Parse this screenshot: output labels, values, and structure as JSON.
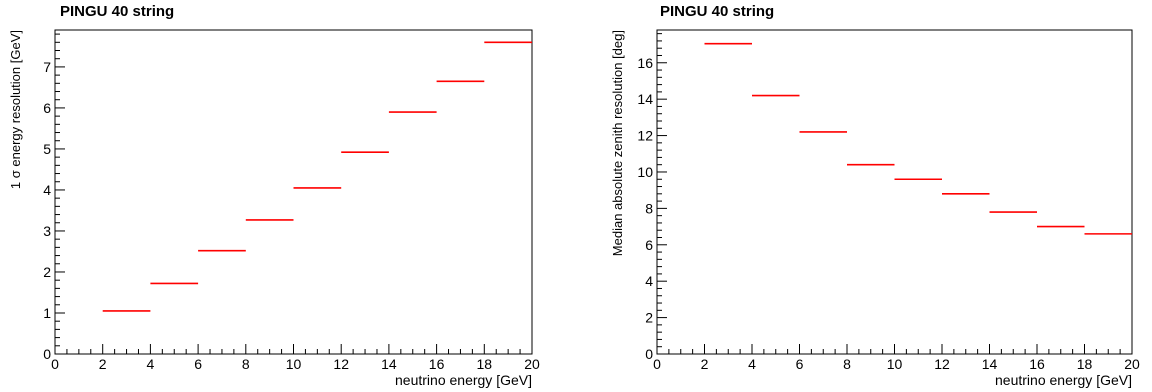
{
  "chart_data": [
    {
      "type": "step",
      "title": "PINGU 40 string",
      "xlabel": "neutrino energy [GeV]",
      "ylabel": "1 σ energy resolution [GeV]",
      "xlim": [
        0,
        20
      ],
      "ylim": [
        0,
        7.9
      ],
      "xticks": [
        "0",
        "2",
        "4",
        "6",
        "8",
        "10",
        "12",
        "14",
        "16",
        "18",
        "20"
      ],
      "yticks": [
        "0",
        "1",
        "2",
        "3",
        "4",
        "5",
        "6",
        "7"
      ],
      "color": "#ff0000",
      "grid": false,
      "bins": [
        {
          "x0": 2,
          "x1": 4,
          "y": 1.05
        },
        {
          "x0": 4,
          "x1": 6,
          "y": 1.72
        },
        {
          "x0": 6,
          "x1": 8,
          "y": 2.52
        },
        {
          "x0": 8,
          "x1": 10,
          "y": 3.27
        },
        {
          "x0": 10,
          "x1": 12,
          "y": 4.05
        },
        {
          "x0": 12,
          "x1": 14,
          "y": 4.92
        },
        {
          "x0": 14,
          "x1": 16,
          "y": 5.9
        },
        {
          "x0": 16,
          "x1": 18,
          "y": 6.65
        },
        {
          "x0": 18,
          "x1": 20,
          "y": 7.6
        }
      ]
    },
    {
      "type": "step",
      "title": "PINGU 40 string",
      "xlabel": "neutrino energy [GeV]",
      "ylabel": "Median absolute zenith resolution [deg]",
      "xlim": [
        0,
        20
      ],
      "ylim": [
        0,
        17.8
      ],
      "xticks": [
        "0",
        "2",
        "4",
        "6",
        "8",
        "10",
        "12",
        "14",
        "16",
        "18",
        "20"
      ],
      "yticks": [
        "0",
        "2",
        "4",
        "6",
        "8",
        "10",
        "12",
        "14",
        "16"
      ],
      "color": "#ff0000",
      "grid": false,
      "bins": [
        {
          "x0": 2,
          "x1": 4,
          "y": 17.05
        },
        {
          "x0": 4,
          "x1": 6,
          "y": 14.2
        },
        {
          "x0": 6,
          "x1": 8,
          "y": 12.2
        },
        {
          "x0": 8,
          "x1": 10,
          "y": 10.4
        },
        {
          "x0": 10,
          "x1": 12,
          "y": 9.6
        },
        {
          "x0": 12,
          "x1": 14,
          "y": 8.8
        },
        {
          "x0": 14,
          "x1": 16,
          "y": 7.8
        },
        {
          "x0": 16,
          "x1": 18,
          "y": 7.0
        },
        {
          "x0": 18,
          "x1": 20,
          "y": 6.6
        }
      ]
    }
  ]
}
